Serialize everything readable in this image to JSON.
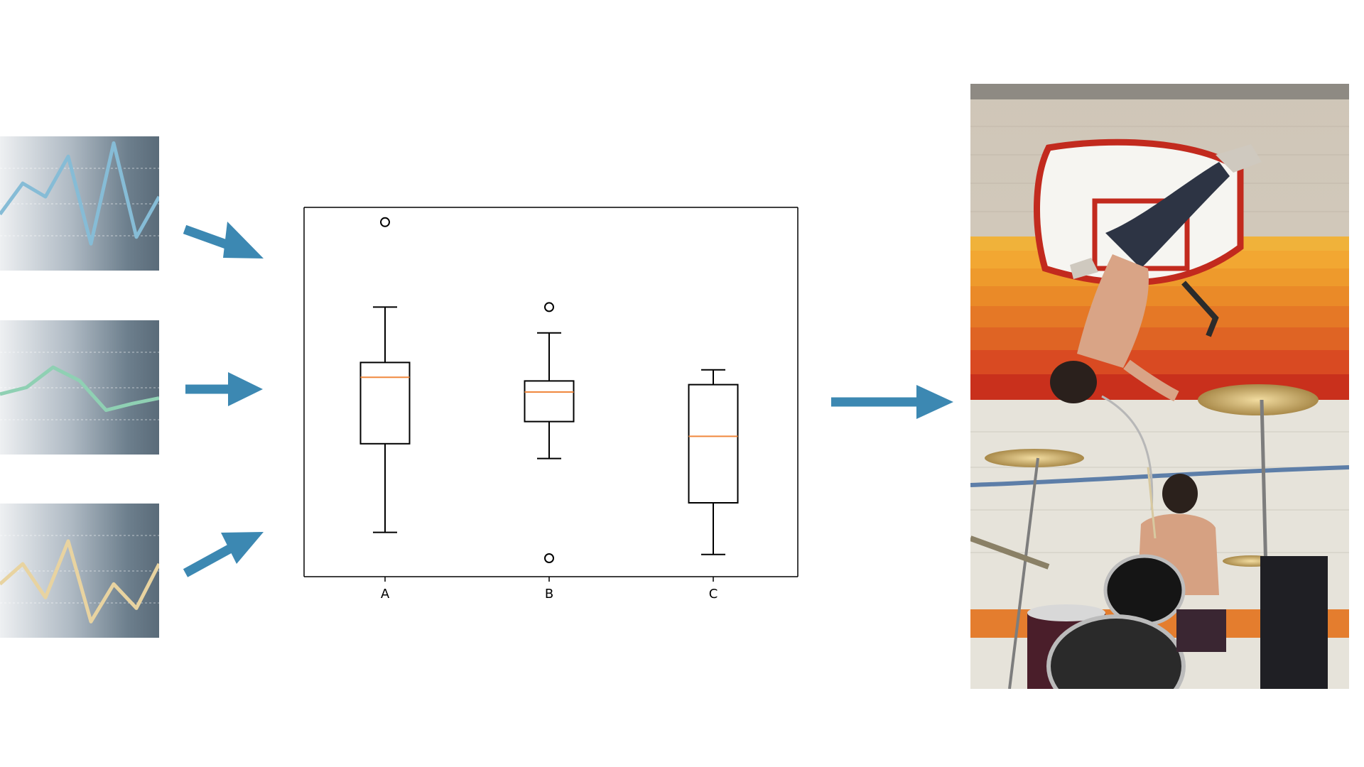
{
  "colors": {
    "arrow": "#3c88b2",
    "series1": "#86bcd6",
    "series2": "#8fd0b3",
    "series3": "#e8d3a0",
    "median": "#f0883e"
  },
  "panels": [
    {
      "name": "panel-1",
      "color_key": "series1",
      "values": [
        0.42,
        0.65,
        0.55,
        0.85,
        0.2,
        0.95,
        0.25,
        0.55
      ]
    },
    {
      "name": "panel-2",
      "color_key": "series2",
      "values": [
        0.45,
        0.5,
        0.65,
        0.55,
        0.33,
        0.38,
        0.42
      ]
    },
    {
      "name": "panel-3",
      "color_key": "series3",
      "values": [
        0.4,
        0.55,
        0.3,
        0.72,
        0.12,
        0.4,
        0.22,
        0.55
      ]
    }
  ],
  "chart_data": {
    "type": "boxplot",
    "categories": [
      "A",
      "B",
      "C"
    ],
    "ylim": [
      0,
      100
    ],
    "boxes": [
      {
        "label": "A",
        "whisker_low": 12,
        "q1": 36,
        "median": 54,
        "q3": 58,
        "whisker_high": 73,
        "outliers": [
          96
        ]
      },
      {
        "label": "B",
        "whisker_low": 32,
        "q1": 42,
        "median": 50,
        "q3": 53,
        "whisker_high": 66,
        "outliers": [
          73,
          5
        ]
      },
      {
        "label": "C",
        "whisker_low": 6,
        "q1": 20,
        "median": 38,
        "q3": 52,
        "whisker_high": 56,
        "outliers": []
      }
    ]
  }
}
